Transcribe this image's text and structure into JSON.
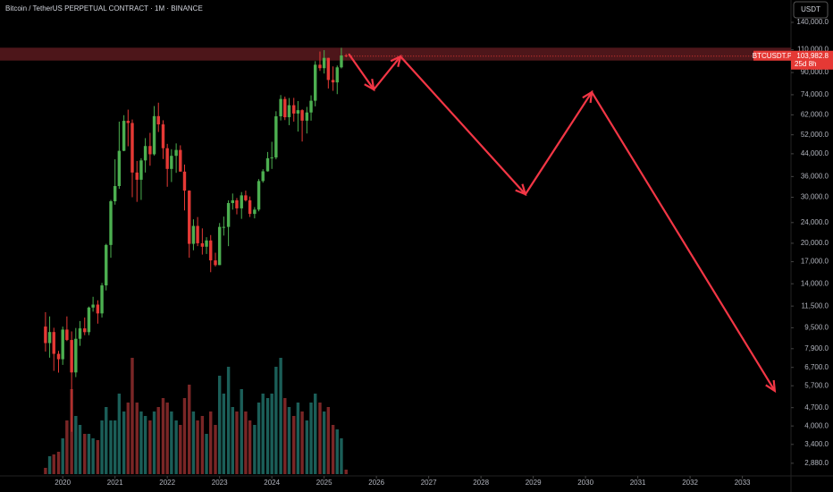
{
  "chart_data": {
    "type": "candlestick",
    "title": "Bitcoin / TetherUS PERPETUAL CONTRACT · 1M · BINANCE",
    "currency_button": "USDT",
    "log_scale": true,
    "grid": false,
    "up_color": "#4caf50",
    "down_color": "#e53935",
    "volume_up_color": "#1b5e58",
    "volume_down_color": "#7a2626",
    "xlim": [
      2018.8,
      2033.93
    ],
    "xticks": [
      2020,
      2021,
      2022,
      2023,
      2024,
      2025,
      2026,
      2027,
      2028,
      2029,
      2030,
      2031,
      2032,
      2033
    ],
    "ylim": [
      2617,
      170500
    ],
    "yticks": [
      {
        "value": 140000,
        "label": "140,000.0"
      },
      {
        "value": 110000,
        "label": "110,000.0"
      },
      {
        "value": 90000,
        "label": "90,000.0"
      },
      {
        "value": 74000,
        "label": "74,000.0"
      },
      {
        "value": 62000,
        "label": "62,000.0"
      },
      {
        "value": 52000,
        "label": "52,000.0"
      },
      {
        "value": 44000,
        "label": "44,000.0"
      },
      {
        "value": 36000,
        "label": "36,000.0"
      },
      {
        "value": 30000,
        "label": "30,000.0"
      },
      {
        "value": 24000,
        "label": "24,000.0"
      },
      {
        "value": 20000,
        "label": "20,000.0"
      },
      {
        "value": 17000,
        "label": "17,000.0"
      },
      {
        "value": 14000,
        "label": "14,000.0"
      },
      {
        "value": 11500,
        "label": "11,500.0"
      },
      {
        "value": 9500,
        "label": "9,500.0"
      },
      {
        "value": 7900,
        "label": "7,900.0"
      },
      {
        "value": 6700,
        "label": "6,700.0"
      },
      {
        "value": 5700,
        "label": "5,700.0"
      },
      {
        "value": 4700,
        "label": "4,700.0"
      },
      {
        "value": 4000,
        "label": "4,000.0"
      },
      {
        "value": 3400,
        "label": "3,400.0"
      },
      {
        "value": 2880,
        "label": "2,880.0"
      }
    ],
    "x": [
      2019.67,
      2019.75,
      2019.83,
      2019.92,
      2020.0,
      2020.08,
      2020.17,
      2020.25,
      2020.33,
      2020.42,
      2020.5,
      2020.58,
      2020.67,
      2020.75,
      2020.83,
      2020.92,
      2021.0,
      2021.08,
      2021.17,
      2021.25,
      2021.33,
      2021.42,
      2021.5,
      2021.58,
      2021.67,
      2021.75,
      2021.83,
      2021.92,
      2022.0,
      2022.08,
      2022.17,
      2022.25,
      2022.33,
      2022.42,
      2022.5,
      2022.58,
      2022.67,
      2022.75,
      2022.83,
      2022.92,
      2023.0,
      2023.08,
      2023.17,
      2023.25,
      2023.33,
      2023.42,
      2023.5,
      2023.58,
      2023.67,
      2023.75,
      2023.83,
      2023.92,
      2024.0,
      2024.08,
      2024.17,
      2024.25,
      2024.33,
      2024.42,
      2024.5,
      2024.58,
      2024.67,
      2024.75,
      2024.83,
      2024.92,
      2025.0,
      2025.08,
      2025.17,
      2025.25,
      2025.33,
      2025.42
    ],
    "open": [
      9600,
      8300,
      9150,
      7550,
      7200,
      9350,
      8530,
      6410,
      8620,
      9450,
      9140,
      11350,
      11650,
      10780,
      13800,
      19700,
      28950,
      33100,
      45150,
      58800,
      57700,
      37300,
      35000,
      41500,
      47100,
      43800,
      61300,
      57000,
      46200,
      38500,
      43200,
      45500,
      37600,
      31800,
      19900,
      23300,
      20000,
      19400,
      20500,
      17200,
      16500,
      23100,
      23100,
      28500,
      29200,
      27200,
      30500,
      29200,
      25900,
      26900,
      34600,
      37700,
      42300,
      42600,
      61200,
      71300,
      60700,
      67500,
      62700,
      64600,
      58900,
      63300,
      70200,
      96400,
      93500,
      102400,
      84300,
      82500,
      94200,
      104600
    ],
    "high": [
      10900,
      10500,
      9500,
      7750,
      9600,
      10500,
      9200,
      9480,
      10080,
      10400,
      11450,
      12480,
      12100,
      14100,
      19900,
      29300,
      41900,
      58400,
      61800,
      64900,
      59500,
      41300,
      42300,
      50500,
      52900,
      67000,
      69000,
      59100,
      48000,
      45800,
      48200,
      47400,
      40000,
      31900,
      24700,
      25200,
      22800,
      21100,
      21500,
      18400,
      23900,
      25300,
      29200,
      31000,
      29800,
      31400,
      31800,
      30200,
      27500,
      35200,
      38400,
      44700,
      48900,
      64000,
      73800,
      72800,
      71900,
      72000,
      70000,
      65100,
      66500,
      73600,
      99500,
      108300,
      109600,
      102500,
      95000,
      95700,
      111900,
      106000
    ],
    "low": [
      7700,
      7300,
      6500,
      6400,
      6850,
      8450,
      3800,
      6150,
      8100,
      8900,
      8900,
      10950,
      9850,
      10400,
      13200,
      17600,
      28100,
      32300,
      45000,
      47000,
      30000,
      28800,
      29300,
      37300,
      39600,
      43300,
      53300,
      42000,
      32900,
      34300,
      37200,
      37600,
      26700,
      17600,
      18800,
      19500,
      18100,
      18200,
      15500,
      16300,
      16500,
      21400,
      19500,
      26900,
      25800,
      24800,
      28900,
      25200,
      24900,
      26500,
      34100,
      37600,
      38500,
      41900,
      59000,
      59200,
      56600,
      58400,
      53500,
      49000,
      52600,
      58900,
      66800,
      91300,
      89200,
      78200,
      76600,
      74400,
      93300,
      103000
    ],
    "close": [
      8300,
      9150,
      7550,
      7200,
      9350,
      8530,
      6410,
      8620,
      9450,
      9140,
      11350,
      11650,
      10780,
      13800,
      19700,
      28950,
      33100,
      45150,
      58800,
      57700,
      37300,
      35000,
      41500,
      47100,
      43800,
      61300,
      57000,
      46200,
      38500,
      43200,
      45500,
      37600,
      31800,
      19900,
      23300,
      20000,
      19400,
      20500,
      17200,
      16500,
      23100,
      23100,
      28500,
      29200,
      27200,
      30500,
      29200,
      25900,
      26900,
      34600,
      37700,
      42300,
      42600,
      61200,
      71300,
      60700,
      67500,
      62700,
      64600,
      58900,
      63300,
      70200,
      96400,
      93500,
      102400,
      84300,
      82500,
      94200,
      104600,
      103982.8
    ],
    "volume": [
      7,
      20,
      22,
      25,
      40,
      60,
      95,
      65,
      55,
      45,
      45,
      40,
      38,
      60,
      75,
      60,
      60,
      90,
      70,
      80,
      130,
      80,
      70,
      65,
      60,
      70,
      75,
      85,
      80,
      70,
      60,
      55,
      85,
      100,
      70,
      60,
      65,
      45,
      70,
      55,
      110,
      90,
      120,
      75,
      70,
      95,
      70,
      60,
      55,
      80,
      90,
      85,
      90,
      120,
      130,
      85,
      75,
      65,
      80,
      70,
      60,
      80,
      90,
      80,
      70,
      75,
      55,
      50,
      40,
      5
    ],
    "last_price": {
      "value": 103982.8,
      "label": "103,982.8"
    },
    "symbol_tag": "BTCUSDT.P",
    "countdown": "25d 8h",
    "zone": {
      "low": 100000,
      "high": 112000,
      "color": "#5a1a1e"
    },
    "projection": {
      "color": "#f23645",
      "x": [
        2025.47,
        2025.95,
        2026.46,
        2028.85,
        2030.12,
        2033.62
      ],
      "y": [
        106200,
        77500,
        103700,
        30800,
        75700,
        5450
      ]
    }
  }
}
